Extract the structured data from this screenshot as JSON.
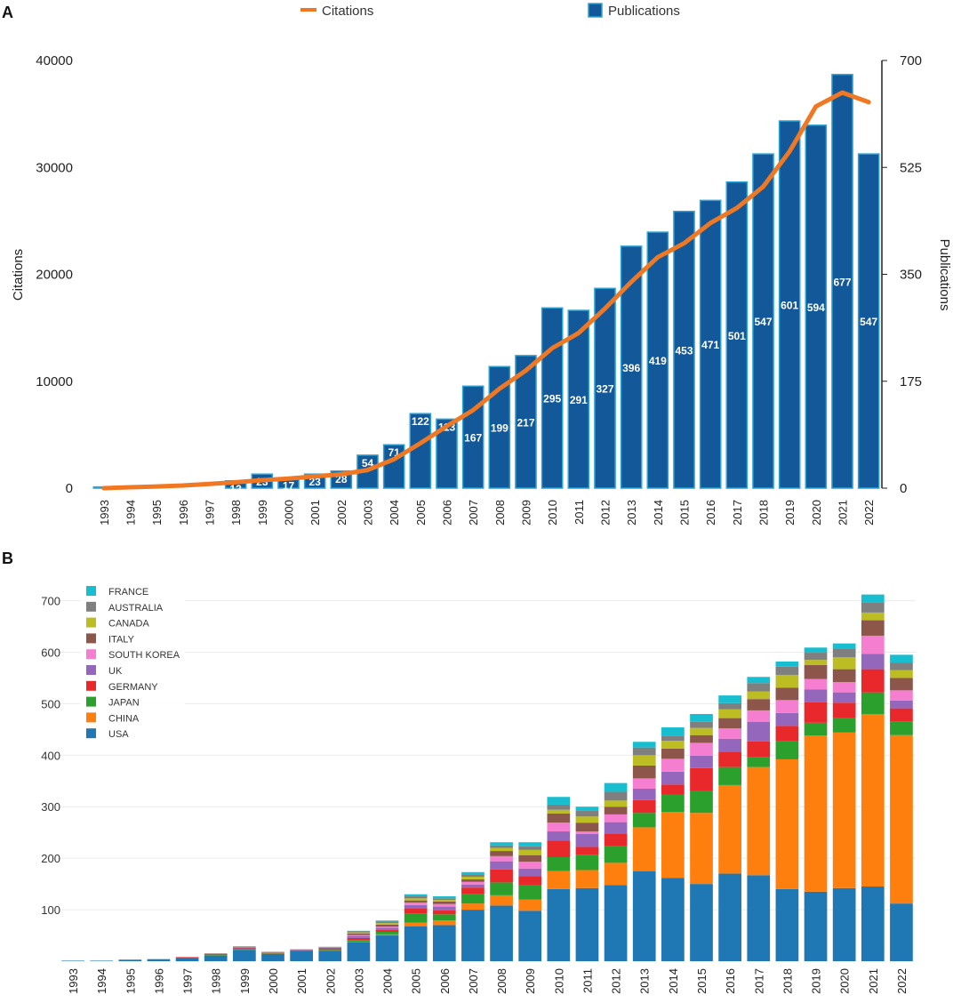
{
  "colors": {
    "bar_blue": "#135899",
    "bar_edge": "#2ba3d4",
    "citations_line": "#f07822",
    "usa": "#1f77b4",
    "china": "#ff7f0e",
    "japan": "#2ca02c",
    "germany": "#e8282a",
    "uk": "#9467bd",
    "south_korea": "#f57ed0",
    "italy": "#8c564b",
    "canada": "#bcbd22",
    "australia": "#7f7f7f",
    "france": "#17becf"
  },
  "chart_data": [
    {
      "type": "bar",
      "panel_label": "A",
      "title": "",
      "years": [
        "1993",
        "1994",
        "1995",
        "1996",
        "1997",
        "1998",
        "1999",
        "2000",
        "2001",
        "2002",
        "2003",
        "2004",
        "2005",
        "2006",
        "2007",
        "2008",
        "2009",
        "2010",
        "2011",
        "2012",
        "2013",
        "2014",
        "2015",
        "2016",
        "2017",
        "2018",
        "2019",
        "2020",
        "2021",
        "2022"
      ],
      "series": [
        {
          "name": "Publications",
          "axis": "right",
          "values": [
            2,
            0,
            0,
            0,
            0,
            12,
            23,
            17,
            23,
            28,
            54,
            71,
            122,
            113,
            167,
            199,
            217,
            295,
            291,
            327,
            396,
            419,
            453,
            471,
            501,
            547,
            601,
            594,
            677,
            547
          ],
          "value_labels": [
            "",
            "",
            "",
            "",
            "",
            "12",
            "23",
            "17",
            "23",
            "28",
            "54",
            "71",
            "122",
            "113",
            "167",
            "199",
            "217",
            "295",
            "291",
            "327",
            "396",
            "419",
            "453",
            "471",
            "501",
            "547",
            "601",
            "594",
            "677",
            "547"
          ]
        },
        {
          "name": "Citations",
          "axis": "left",
          "type": "line",
          "values": [
            0,
            80,
            160,
            250,
            400,
            550,
            750,
            900,
            1100,
            1300,
            1700,
            2700,
            4200,
            5800,
            7300,
            9300,
            11000,
            13100,
            14500,
            16800,
            19300,
            21600,
            22900,
            24800,
            26200,
            28200,
            31500,
            35700,
            37000,
            36100
          ]
        }
      ],
      "legend": [
        "Citations",
        "Publications"
      ],
      "ylabel_left": "Citations",
      "ylabel_right": "Publications",
      "ylim_left": [
        0,
        40000
      ],
      "ylim_right": [
        0,
        700
      ],
      "yticks_left": [
        "0",
        "10000",
        "20000",
        "30000",
        "40000"
      ],
      "yticks_right": [
        "0",
        "175",
        "350",
        "525",
        "700"
      ]
    },
    {
      "type": "bar",
      "stacked": true,
      "panel_label": "B",
      "years": [
        "1993",
        "1994",
        "1995",
        "1996",
        "1997",
        "1998",
        "1999",
        "2000",
        "2001",
        "2002",
        "2003",
        "2004",
        "2005",
        "2006",
        "2007",
        "2008",
        "2009",
        "2010",
        "2011",
        "2012",
        "2013",
        "2014",
        "2015",
        "2016",
        "2017",
        "2018",
        "2019",
        "2020",
        "2021",
        "2022"
      ],
      "legend": [
        "FRANCE",
        "AUSTRALIA",
        "CANADA",
        "ITALY",
        "SOUTH KOREA",
        "UK",
        "GERMANY",
        "JAPAN",
        "CHINA",
        "USA"
      ],
      "ylim": [
        0,
        760
      ],
      "yticks": [
        "100",
        "200",
        "300",
        "400",
        "500",
        "600",
        "700"
      ],
      "series": [
        {
          "name": "USA",
          "color_key": "usa",
          "values": [
            1,
            1,
            3,
            4,
            6,
            11,
            22,
            14,
            19,
            20,
            37,
            50,
            68,
            70,
            100,
            108,
            98,
            140,
            142,
            148,
            175,
            162,
            150,
            170,
            167,
            140,
            135,
            142,
            145,
            112
          ]
        },
        {
          "name": "CHINA",
          "color_key": "china",
          "values": [
            0,
            0,
            0,
            0,
            0,
            0,
            0,
            0,
            0,
            0,
            1,
            2,
            7,
            9,
            12,
            20,
            22,
            35,
            35,
            43,
            85,
            128,
            138,
            172,
            210,
            252,
            303,
            302,
            335,
            327
          ]
        },
        {
          "name": "JAPAN",
          "color_key": "japan",
          "values": [
            0,
            0,
            0,
            0,
            1,
            1,
            2,
            1,
            1,
            2,
            3,
            5,
            18,
            12,
            18,
            25,
            27,
            27,
            30,
            32,
            28,
            33,
            42,
            35,
            20,
            35,
            25,
            28,
            42,
            27
          ]
        },
        {
          "name": "GERMANY",
          "color_key": "germany",
          "values": [
            0,
            0,
            0,
            0,
            1,
            1,
            1,
            1,
            1,
            2,
            4,
            4,
            10,
            8,
            13,
            25,
            18,
            32,
            15,
            25,
            25,
            20,
            45,
            30,
            30,
            30,
            40,
            30,
            45,
            25
          ]
        },
        {
          "name": "UK",
          "color_key": "uk",
          "values": [
            0,
            0,
            0,
            0,
            0,
            1,
            1,
            1,
            1,
            1,
            4,
            4,
            6,
            7,
            6,
            16,
            15,
            18,
            25,
            22,
            22,
            25,
            24,
            25,
            38,
            25,
            25,
            20,
            30,
            15
          ]
        },
        {
          "name": "SOUTH KOREA",
          "color_key": "south_korea",
          "values": [
            0,
            0,
            0,
            0,
            0,
            0,
            0,
            0,
            0,
            0,
            2,
            2,
            5,
            5,
            5,
            10,
            13,
            17,
            5,
            15,
            20,
            25,
            25,
            20,
            22,
            25,
            20,
            20,
            35,
            20
          ]
        },
        {
          "name": "ITALY",
          "color_key": "italy",
          "values": [
            0,
            0,
            0,
            0,
            0,
            1,
            1,
            1,
            1,
            1,
            3,
            4,
            4,
            5,
            5,
            10,
            13,
            18,
            17,
            15,
            25,
            20,
            15,
            20,
            22,
            24,
            27,
            25,
            30,
            24
          ]
        },
        {
          "name": "CANADA",
          "color_key": "canada",
          "values": [
            0,
            0,
            0,
            0,
            0,
            0,
            1,
            0,
            0,
            1,
            2,
            3,
            4,
            3,
            5,
            6,
            10,
            7,
            12,
            12,
            20,
            15,
            14,
            17,
            15,
            25,
            10,
            23,
            15,
            15
          ]
        },
        {
          "name": "AUSTRALIA",
          "color_key": "australia",
          "values": [
            0,
            0,
            0,
            0,
            0,
            0,
            1,
            0,
            0,
            1,
            2,
            3,
            4,
            3,
            5,
            5,
            7,
            10,
            12,
            17,
            15,
            10,
            12,
            12,
            16,
            16,
            14,
            17,
            20,
            15
          ]
        },
        {
          "name": "FRANCE",
          "color_key": "france",
          "values": [
            0,
            0,
            0,
            0,
            0,
            0,
            0,
            0,
            0,
            0,
            1,
            2,
            4,
            4,
            4,
            6,
            8,
            15,
            7,
            17,
            11,
            16,
            15,
            15,
            12,
            10,
            10,
            10,
            15,
            15
          ]
        }
      ]
    }
  ]
}
